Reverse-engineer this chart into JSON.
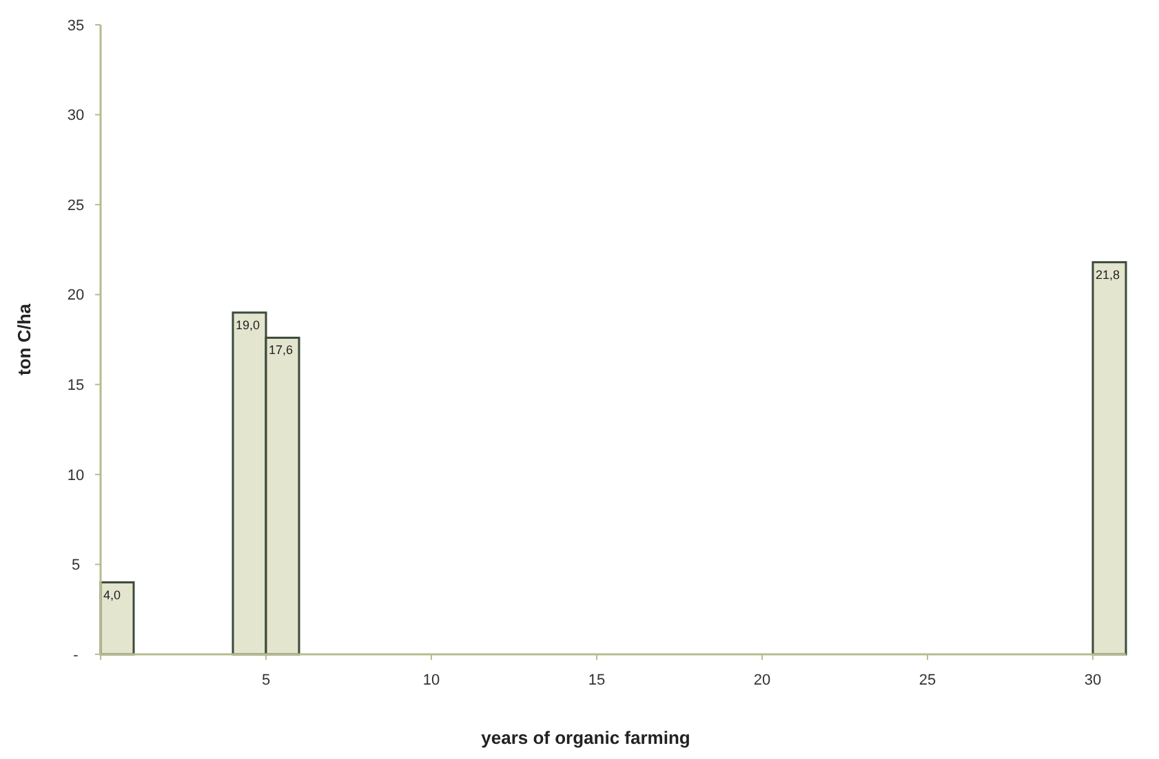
{
  "chart_data": {
    "type": "bar",
    "xlabel": "years of organic farming",
    "ylabel": "ton C/ha",
    "x": [
      0.5,
      4.5,
      5.5,
      30.5
    ],
    "values": [
      4.0,
      19.0,
      17.6,
      21.8
    ],
    "value_labels": [
      "4,0",
      "19,0",
      "17,6",
      "21,8"
    ],
    "color": "#e3e5cf",
    "xlim": [
      0,
      31
    ],
    "xticks": [
      {
        "value": 0,
        "label": null
      },
      5,
      10,
      15,
      20,
      25,
      30
    ],
    "ylim": [
      0,
      35
    ],
    "yticks": [
      {
        "value": 0,
        "label": "-"
      },
      5,
      10,
      15,
      20,
      25,
      30,
      35
    ],
    "grid": false
  }
}
